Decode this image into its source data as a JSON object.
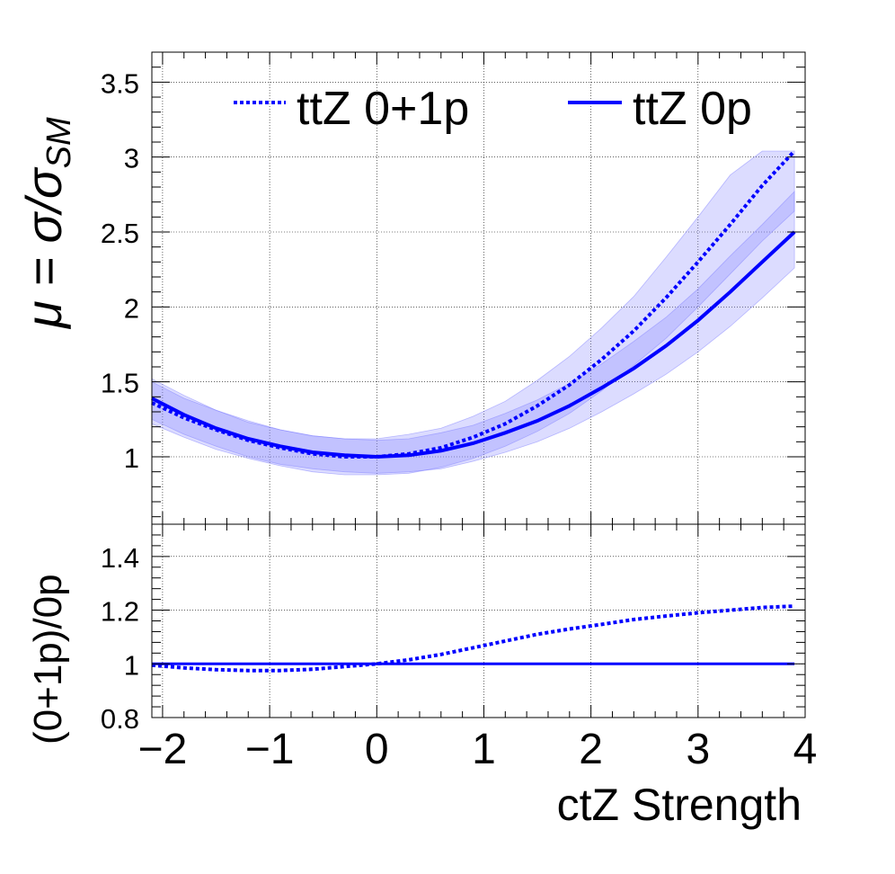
{
  "chart_data": [
    {
      "type": "line",
      "panel": "top",
      "ylabel": "μ = σ/σ_SM",
      "ylabel_parts": {
        "main": "μ = σ/σ",
        "sub": "SM"
      },
      "xlim": [
        -2.1,
        4.0
      ],
      "ylim": [
        0.55,
        3.7
      ],
      "x_ticks": [
        -2,
        -1,
        0,
        1,
        2,
        3,
        4
      ],
      "y_ticks": [
        1,
        1.5,
        2,
        2.5,
        3,
        3.5
      ],
      "y_tick_labels": [
        "1",
        "1.5",
        "2",
        "2.5",
        "3",
        "3.5"
      ],
      "grid": true,
      "legend_position": "top",
      "colors": {
        "series": "#0000ff",
        "band": "#8080ff"
      },
      "series": [
        {
          "name": "ttZ 0+1p",
          "style": "dotted",
          "x": [
            -2.1,
            -1.8,
            -1.5,
            -1.2,
            -0.9,
            -0.6,
            -0.3,
            0.0,
            0.3,
            0.6,
            0.9,
            1.2,
            1.5,
            1.8,
            2.1,
            2.4,
            2.7,
            3.0,
            3.3,
            3.6,
            3.9
          ],
          "values": [
            1.36,
            1.26,
            1.18,
            1.11,
            1.06,
            1.02,
            1.0,
            1.0,
            1.02,
            1.06,
            1.13,
            1.22,
            1.34,
            1.48,
            1.65,
            1.84,
            2.06,
            2.3,
            2.55,
            2.81,
            3.04
          ],
          "band_low": [
            1.22,
            1.13,
            1.05,
            0.99,
            0.94,
            0.9,
            0.88,
            0.88,
            0.89,
            0.93,
            0.99,
            1.07,
            1.17,
            1.29,
            1.44,
            1.61,
            1.79,
            2.0,
            2.22,
            2.44,
            2.64
          ],
          "band_high": [
            1.5,
            1.39,
            1.31,
            1.23,
            1.18,
            1.14,
            1.12,
            1.12,
            1.15,
            1.19,
            1.27,
            1.37,
            1.51,
            1.67,
            1.86,
            2.07,
            2.33,
            2.6,
            2.88,
            3.04,
            3.04
          ]
        },
        {
          "name": "ttZ 0p",
          "style": "solid",
          "x": [
            -2.1,
            -1.8,
            -1.5,
            -1.2,
            -0.9,
            -0.6,
            -0.3,
            0.0,
            0.3,
            0.6,
            0.9,
            1.2,
            1.5,
            1.8,
            2.1,
            2.4,
            2.7,
            3.0,
            3.3,
            3.6,
            3.9
          ],
          "values": [
            1.39,
            1.28,
            1.19,
            1.12,
            1.07,
            1.03,
            1.01,
            1.0,
            1.01,
            1.04,
            1.09,
            1.16,
            1.24,
            1.34,
            1.46,
            1.59,
            1.74,
            1.91,
            2.1,
            2.3,
            2.5
          ],
          "band_low": [
            1.25,
            1.15,
            1.07,
            1.0,
            0.95,
            0.92,
            0.9,
            0.89,
            0.9,
            0.92,
            0.97,
            1.03,
            1.1,
            1.19,
            1.3,
            1.42,
            1.55,
            1.7,
            1.87,
            2.06,
            2.26
          ],
          "band_high": [
            1.52,
            1.41,
            1.31,
            1.24,
            1.18,
            1.14,
            1.12,
            1.11,
            1.12,
            1.16,
            1.21,
            1.29,
            1.38,
            1.49,
            1.62,
            1.77,
            1.93,
            2.12,
            2.34,
            2.55,
            2.77
          ]
        }
      ]
    },
    {
      "type": "line",
      "panel": "bottom",
      "xlabel": "ctZ Strength",
      "ylabel": "(0+1p)/0p",
      "xlim": [
        -2.1,
        4.0
      ],
      "ylim": [
        0.8,
        1.52
      ],
      "x_ticks": [
        -2,
        -1,
        0,
        1,
        2,
        3,
        4
      ],
      "x_tick_labels": [
        "−2",
        "−1",
        "0",
        "1",
        "2",
        "3",
        "4"
      ],
      "y_ticks": [
        0.8,
        1,
        1.2,
        1.4
      ],
      "y_tick_labels": [
        "0.8",
        "1",
        "1.2",
        "1.4"
      ],
      "grid": true,
      "series": [
        {
          "name": "ttZ 0+1p",
          "style": "dotted",
          "x": [
            -2.1,
            -1.8,
            -1.5,
            -1.2,
            -0.9,
            -0.6,
            -0.3,
            0.0,
            0.3,
            0.6,
            0.9,
            1.2,
            1.5,
            1.8,
            2.1,
            2.4,
            2.7,
            3.0,
            3.3,
            3.6,
            3.9
          ],
          "values": [
            0.995,
            0.985,
            0.978,
            0.975,
            0.975,
            0.98,
            0.99,
            1.0,
            1.015,
            1.035,
            1.06,
            1.085,
            1.11,
            1.13,
            1.147,
            1.165,
            1.178,
            1.19,
            1.2,
            1.21,
            1.215
          ]
        },
        {
          "name": "ttZ 0p",
          "style": "solid",
          "x": [
            -2.1,
            3.9
          ],
          "values": [
            1.0,
            1.0
          ]
        }
      ]
    }
  ]
}
